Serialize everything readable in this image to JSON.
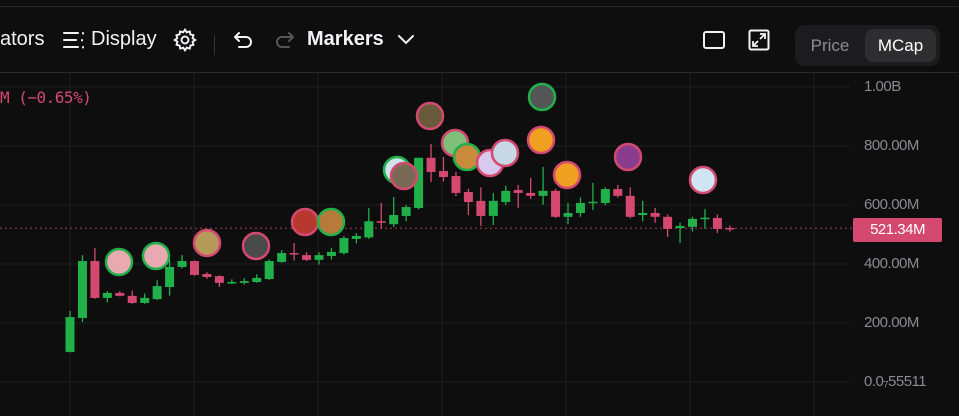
{
  "toolbar": {
    "indicators_label": "ators",
    "display_label": "Display",
    "markers_label": "Markers",
    "price_label": "Price",
    "mcap_label": "MCap",
    "active_mode": "MCap"
  },
  "legend": {
    "change_text": "M (−0.65%)"
  },
  "colors": {
    "up": "#22b04b",
    "down": "#d4496f",
    "background": "#0e0e0f",
    "grid": "#1e1e20"
  },
  "chart_data": {
    "type": "candlestick",
    "unit": "M",
    "y_ticks": [
      "1.00B",
      "800.00M",
      "600.00M",
      "400.00M",
      "200.00M",
      "0.0₇55511"
    ],
    "y_tick_values": [
      1000,
      800,
      600,
      400,
      200,
      0
    ],
    "ylim": [
      0,
      1000
    ],
    "grid": true,
    "current_value": 521.34,
    "current_label": "521.34M",
    "candles": [
      {
        "o": 102,
        "h": 241,
        "l": 100,
        "c": 220
      },
      {
        "o": 217,
        "h": 430,
        "l": 203,
        "c": 410
      },
      {
        "o": 410,
        "h": 454,
        "l": 282,
        "c": 285
      },
      {
        "o": 285,
        "h": 308,
        "l": 270,
        "c": 302
      },
      {
        "o": 302,
        "h": 308,
        "l": 290,
        "c": 292
      },
      {
        "o": 292,
        "h": 310,
        "l": 265,
        "c": 268
      },
      {
        "o": 268,
        "h": 300,
        "l": 265,
        "c": 285
      },
      {
        "o": 281,
        "h": 345,
        "l": 278,
        "c": 325
      },
      {
        "o": 322,
        "h": 415,
        "l": 293,
        "c": 390
      },
      {
        "o": 390,
        "h": 430,
        "l": 385,
        "c": 410
      },
      {
        "o": 410,
        "h": 412,
        "l": 360,
        "c": 363
      },
      {
        "o": 366,
        "h": 372,
        "l": 350,
        "c": 356
      },
      {
        "o": 359,
        "h": 362,
        "l": 322,
        "c": 336
      },
      {
        "o": 338,
        "h": 348,
        "l": 332,
        "c": 339
      },
      {
        "o": 336,
        "h": 352,
        "l": 330,
        "c": 342
      },
      {
        "o": 339,
        "h": 365,
        "l": 336,
        "c": 353
      },
      {
        "o": 349,
        "h": 415,
        "l": 346,
        "c": 410
      },
      {
        "o": 407,
        "h": 447,
        "l": 404,
        "c": 437
      },
      {
        "o": 437,
        "h": 471,
        "l": 412,
        "c": 434
      },
      {
        "o": 430,
        "h": 440,
        "l": 410,
        "c": 414
      },
      {
        "o": 414,
        "h": 440,
        "l": 398,
        "c": 430
      },
      {
        "o": 427,
        "h": 455,
        "l": 415,
        "c": 441
      },
      {
        "o": 437,
        "h": 495,
        "l": 432,
        "c": 488
      },
      {
        "o": 485,
        "h": 505,
        "l": 470,
        "c": 495
      },
      {
        "o": 490,
        "h": 590,
        "l": 485,
        "c": 545
      },
      {
        "o": 545,
        "h": 607,
        "l": 520,
        "c": 540
      },
      {
        "o": 535,
        "h": 627,
        "l": 525,
        "c": 566
      },
      {
        "o": 563,
        "h": 600,
        "l": 545,
        "c": 593
      },
      {
        "o": 590,
        "h": 760,
        "l": 585,
        "c": 760
      },
      {
        "o": 760,
        "h": 807,
        "l": 678,
        "c": 712
      },
      {
        "o": 715,
        "h": 763,
        "l": 680,
        "c": 695
      },
      {
        "o": 698,
        "h": 712,
        "l": 630,
        "c": 641
      },
      {
        "o": 644,
        "h": 655,
        "l": 566,
        "c": 610
      },
      {
        "o": 614,
        "h": 660,
        "l": 529,
        "c": 563
      },
      {
        "o": 563,
        "h": 640,
        "l": 532,
        "c": 614
      },
      {
        "o": 610,
        "h": 665,
        "l": 600,
        "c": 648
      },
      {
        "o": 651,
        "h": 668,
        "l": 590,
        "c": 641
      },
      {
        "o": 641,
        "h": 692,
        "l": 620,
        "c": 631
      },
      {
        "o": 631,
        "h": 729,
        "l": 601,
        "c": 648
      },
      {
        "o": 648,
        "h": 655,
        "l": 556,
        "c": 560
      },
      {
        "o": 560,
        "h": 607,
        "l": 535,
        "c": 573
      },
      {
        "o": 573,
        "h": 625,
        "l": 560,
        "c": 607
      },
      {
        "o": 609,
        "h": 675,
        "l": 583,
        "c": 611
      },
      {
        "o": 607,
        "h": 660,
        "l": 600,
        "c": 654
      },
      {
        "o": 654,
        "h": 668,
        "l": 625,
        "c": 631
      },
      {
        "o": 631,
        "h": 660,
        "l": 555,
        "c": 560
      },
      {
        "o": 566,
        "h": 614,
        "l": 545,
        "c": 573
      },
      {
        "o": 573,
        "h": 590,
        "l": 540,
        "c": 560
      },
      {
        "o": 560,
        "h": 568,
        "l": 492,
        "c": 519
      },
      {
        "o": 522,
        "h": 540,
        "l": 471,
        "c": 529
      },
      {
        "o": 526,
        "h": 560,
        "l": 510,
        "c": 553
      },
      {
        "o": 555,
        "h": 586,
        "l": 520,
        "c": 557
      },
      {
        "o": 556,
        "h": 568,
        "l": 505,
        "c": 519
      },
      {
        "o": 522,
        "h": 530,
        "l": 510,
        "c": 521
      }
    ]
  }
}
